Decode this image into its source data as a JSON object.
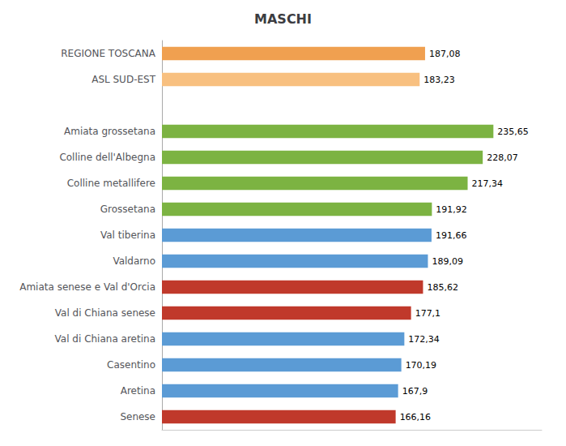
{
  "chart_data": {
    "type": "bar",
    "orientation": "horizontal",
    "title": "MASCHI",
    "categories": [
      "REGIONE TOSCANA",
      "ASL SUD-EST",
      null,
      "Amiata grossetana",
      "Colline dell'Albegna",
      "Colline metallifere",
      "Grossetana",
      "Val tiberina",
      "Valdarno",
      "Amiata senese e Val d'Orcia",
      "Val di Chiana senese",
      "Val di Chiana aretina",
      "Casentino",
      "Aretina",
      "Senese"
    ],
    "values": [
      187.08,
      183.23,
      null,
      235.65,
      228.07,
      217.34,
      191.92,
      191.66,
      189.09,
      185.62,
      177.1,
      172.34,
      170.19,
      167.9,
      166.16
    ],
    "value_labels": [
      "187,08",
      "183,23",
      null,
      "235,65",
      "228,07",
      "217,34",
      "191,92",
      "191,66",
      "189,09",
      "185,62",
      "177,1",
      "172,34",
      "170,19",
      "167,9",
      "166,16"
    ],
    "colors": [
      "#F0A050",
      "#F8C080",
      null,
      "#7CB342",
      "#7CB342",
      "#7CB342",
      "#7CB342",
      "#5B9BD5",
      "#5B9BD5",
      "#C0392B",
      "#C0392B",
      "#5B9BD5",
      "#5B9BD5",
      "#5B9BD5",
      "#C0392B"
    ],
    "xlim": [
      0,
      270
    ],
    "data_labels": true,
    "tick_labels": "y",
    "grid": false
  }
}
